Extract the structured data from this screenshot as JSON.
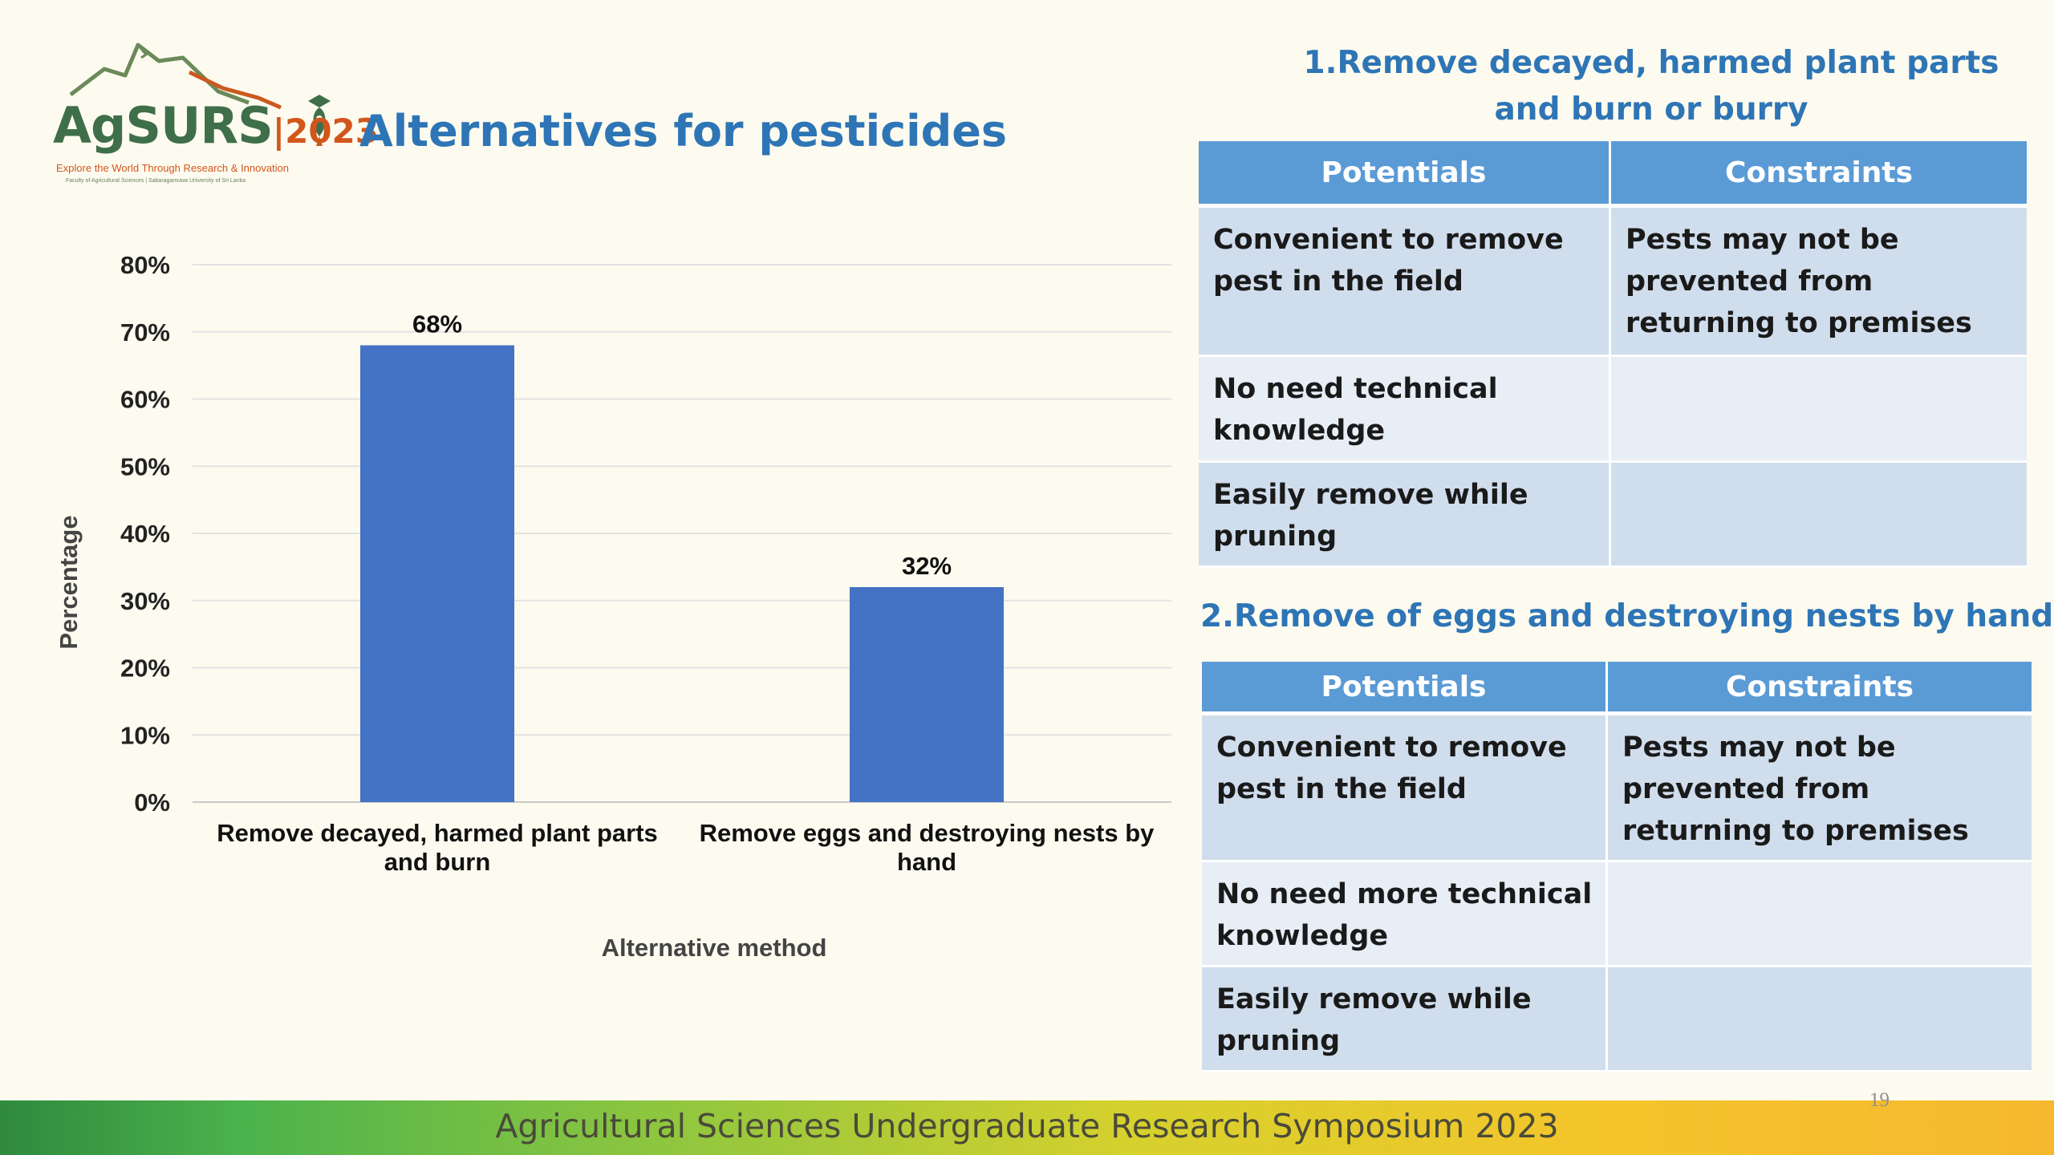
{
  "logo": {
    "brand": "AgSURS",
    "year": "2023",
    "tagline": "Explore the World Through Research & Innovation",
    "subtext": "Faculty of Agricultural Sciences | Sabaragamuwa University of Sri Lanka"
  },
  "title": "Alternatives for pesticides",
  "chart_data": {
    "type": "bar",
    "categories": [
      [
        "Remove decayed, harmed plant parts",
        "and burn"
      ],
      [
        "Remove eggs and destroying nests by",
        "hand"
      ]
    ],
    "values": [
      68,
      32
    ],
    "data_labels": [
      "68%",
      "32%"
    ],
    "xlabel": "Alternative method",
    "ylabel": "Percentage",
    "ylim": [
      0,
      80
    ],
    "yticks": [
      "0%",
      "10%",
      "20%",
      "30%",
      "40%",
      "50%",
      "60%",
      "70%",
      "80%"
    ],
    "grid": true,
    "bar_color": "#4472c4"
  },
  "section1": {
    "title_line1": "1.Remove decayed, harmed plant parts",
    "title_line2": "and burn or burry",
    "headers": [
      "Potentials",
      "Constraints"
    ],
    "rows": [
      [
        "Convenient to remove pest in the field",
        "Pests may not be prevented from returning to premises"
      ],
      [
        "No need technical knowledge",
        ""
      ],
      [
        "Easily remove while pruning",
        ""
      ]
    ]
  },
  "section2": {
    "title": "2.Remove of eggs and destroying nests by hand",
    "headers": [
      "Potentials",
      "Constraints"
    ],
    "rows": [
      [
        "Convenient to remove pest in the field",
        "Pests may not be prevented from returning to premises"
      ],
      [
        "No need more technical knowledge",
        ""
      ],
      [
        "Easily remove while pruning",
        ""
      ]
    ]
  },
  "footer": {
    "text": "Agricultural Sciences Undergraduate Research Symposium 2023",
    "page_number": "19"
  },
  "colors": {
    "background": "#fdfbef",
    "title": "#2e75b6",
    "table_header": "#5b9bd5",
    "table_row_dark": "#d0ddec",
    "table_row_light": "#e8eef6"
  }
}
